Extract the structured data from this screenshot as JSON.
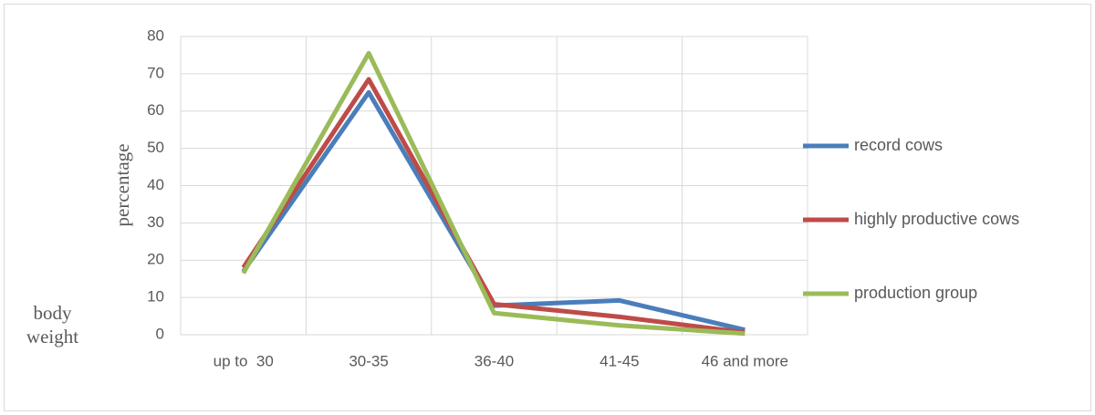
{
  "chart_data": {
    "type": "line",
    "x_label": "body weight",
    "y_label": "percentage",
    "categories": [
      "up to  30",
      "30-35",
      "36-40",
      "41-45",
      "46 and more"
    ],
    "series": [
      {
        "name": "record cows",
        "color": "#4a7ebb",
        "values": [
          17,
          65,
          7.8,
          9.2,
          1.3
        ]
      },
      {
        "name": "highly productive cows",
        "color": "#be4b48",
        "values": [
          18,
          68.5,
          8.2,
          4.8,
          0.6
        ]
      },
      {
        "name": "production group",
        "color": "#9bbb59",
        "values": [
          16.5,
          75.5,
          5.8,
          2.5,
          0.3
        ]
      }
    ],
    "ylim": [
      0,
      80
    ],
    "yticks": [
      0,
      10,
      20,
      30,
      40,
      50,
      60,
      70,
      80
    ],
    "grid": true,
    "legend": "right"
  }
}
